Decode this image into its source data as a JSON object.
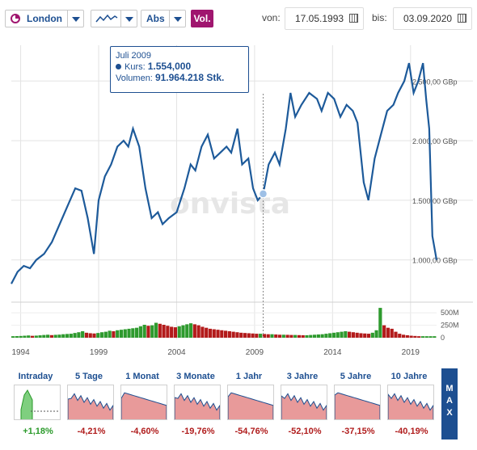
{
  "toolbar": {
    "exchange": "London",
    "scale": "Abs",
    "vol_label": "Vol.",
    "from_label": "von:",
    "from_date": "17.05.1993",
    "to_label": "bis:",
    "to_date": "03.09.2020"
  },
  "tooltip": {
    "date": "Juli 2009",
    "kurs_label": "Kurs:",
    "kurs_value": "1.554,000",
    "volumen_label": "Volumen:",
    "volumen_value": "91.964.218 Stk."
  },
  "watermark": "onvista",
  "colors": {
    "line": "#1d5a9a",
    "vol_up": "#2e9a2e",
    "vol_down": "#b31b1b",
    "accent": "#a0166f"
  },
  "chart_data": [
    {
      "type": "line",
      "x_unit": "year",
      "x": [
        1993.4,
        1993.8,
        1994.2,
        1994.6,
        1995.0,
        1995.5,
        1996.0,
        1996.5,
        1997.0,
        1997.5,
        1997.9,
        1998.3,
        1998.7,
        1999.0,
        1999.4,
        1999.8,
        2000.2,
        2000.6,
        2000.9,
        2001.2,
        2001.6,
        2002.0,
        2002.4,
        2002.8,
        2003.1,
        2003.5,
        2004.0,
        2004.5,
        2004.9,
        2005.2,
        2005.6,
        2006.0,
        2006.4,
        2006.8,
        2007.2,
        2007.5,
        2007.9,
        2008.2,
        2008.6,
        2008.9,
        2009.2,
        2009.55,
        2009.9,
        2010.3,
        2010.6,
        2011.0,
        2011.3,
        2011.6,
        2012.0,
        2012.5,
        2013.0,
        2013.3,
        2013.7,
        2014.1,
        2014.5,
        2014.9,
        2015.3,
        2015.6,
        2016.0,
        2016.3,
        2016.7,
        2017.1,
        2017.5,
        2017.9,
        2018.2,
        2018.6,
        2018.9,
        2019.2,
        2019.5,
        2019.8,
        2020.0,
        2020.2,
        2020.4,
        2020.67
      ],
      "y": [
        800,
        900,
        950,
        930,
        1000,
        1050,
        1150,
        1300,
        1450,
        1600,
        1580,
        1350,
        1050,
        1500,
        1700,
        1800,
        1950,
        2000,
        1950,
        2100,
        1950,
        1600,
        1350,
        1400,
        1300,
        1350,
        1400,
        1600,
        1800,
        1750,
        1950,
        2050,
        1850,
        1900,
        1950,
        1900,
        2100,
        1800,
        1850,
        1600,
        1500,
        1554,
        1800,
        1900,
        1800,
        2100,
        2400,
        2200,
        2300,
        2400,
        2350,
        2250,
        2400,
        2350,
        2200,
        2300,
        2250,
        2150,
        1650,
        1500,
        1850,
        2050,
        2250,
        2300,
        2400,
        2500,
        2650,
        2400,
        2500,
        2650,
        2350,
        2100,
        1200,
        1000
      ],
      "y_ticks": [
        1000,
        1500,
        2000,
        2500
      ],
      "y_tick_labels": [
        "1.000,00 GBp",
        "1.500,00 GBp",
        "2.000,00 GBp",
        "2.500,00 GBp"
      ],
      "x_ticks": [
        1994,
        1999,
        2004,
        2009,
        2014,
        2019
      ],
      "x_tick_labels": [
        "1994",
        "1999",
        "2004",
        "2009",
        "2014",
        "2019"
      ],
      "highlight": {
        "x": 2009.55,
        "y": 1554
      },
      "ylim": [
        700,
        2800
      ],
      "grid": true
    },
    {
      "type": "bar",
      "title": "Volumen",
      "y_unit": "Stk.",
      "y_ticks": [
        0,
        250000000,
        500000000
      ],
      "y_tick_labels": [
        "0",
        "250M",
        "500M"
      ],
      "ylim": [
        0,
        650000000
      ],
      "x_start": 1993.4,
      "x_step": 0.25,
      "values_millions": [
        30,
        32,
        35,
        40,
        45,
        38,
        42,
        48,
        55,
        60,
        52,
        58,
        62,
        70,
        75,
        80,
        95,
        110,
        130,
        100,
        90,
        85,
        95,
        110,
        120,
        140,
        130,
        150,
        160,
        170,
        180,
        190,
        200,
        230,
        260,
        240,
        250,
        300,
        280,
        260,
        240,
        220,
        210,
        230,
        250,
        270,
        290,
        270,
        250,
        220,
        200,
        180,
        170,
        160,
        150,
        140,
        130,
        120,
        110,
        100,
        95,
        90,
        85,
        80,
        80,
        75,
        70,
        70,
        65,
        60,
        60,
        58,
        55,
        55,
        52,
        50,
        50,
        55,
        60,
        65,
        70,
        80,
        90,
        100,
        110,
        120,
        130,
        120,
        110,
        100,
        90,
        85,
        80,
        100,
        150,
        600,
        250,
        200,
        180,
        120,
        80,
        60,
        50,
        40,
        35,
        30,
        30,
        30,
        30,
        30
      ],
      "colors_by_sign": [
        "up",
        "down"
      ]
    }
  ],
  "periods": [
    {
      "label": "Intraday",
      "change": "+1,18%",
      "sign": "pos"
    },
    {
      "label": "5 Tage",
      "change": "-4,21%",
      "sign": "neg"
    },
    {
      "label": "1 Monat",
      "change": "-4,60%",
      "sign": "neg"
    },
    {
      "label": "3 Monate",
      "change": "-19,76%",
      "sign": "neg"
    },
    {
      "label": "1 Jahr",
      "change": "-54,76%",
      "sign": "neg"
    },
    {
      "label": "3 Jahre",
      "change": "-52,10%",
      "sign": "neg"
    },
    {
      "label": "5 Jahre",
      "change": "-37,15%",
      "sign": "neg"
    },
    {
      "label": "10 Jahre",
      "change": "-40,19%",
      "sign": "neg"
    }
  ],
  "max_label": "MAX"
}
